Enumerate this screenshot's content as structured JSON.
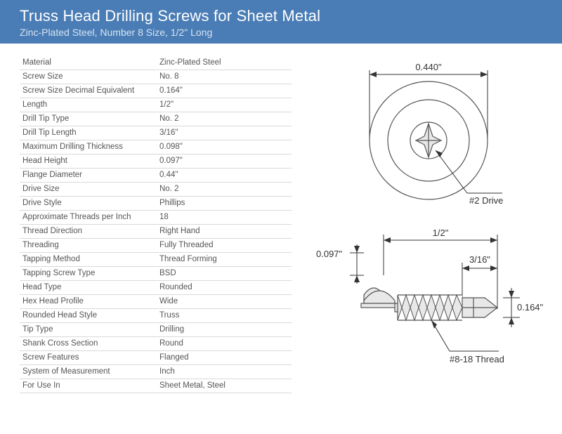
{
  "header": {
    "title": "Truss Head Drilling Screws for Sheet Metal",
    "subtitle": "Zinc-Plated Steel, Number 8 Size, 1/2\" Long"
  },
  "specs": [
    {
      "key": "Material",
      "val": "Zinc-Plated Steel"
    },
    {
      "key": "Screw Size",
      "val": "No. 8"
    },
    {
      "key": "Screw Size Decimal Equivalent",
      "val": "0.164\""
    },
    {
      "key": "Length",
      "val": "1/2\""
    },
    {
      "key": "Drill Tip Type",
      "val": "No. 2"
    },
    {
      "key": "Drill Tip Length",
      "val": "3/16\""
    },
    {
      "key": "Maximum Drilling Thickness",
      "val": "0.098\""
    },
    {
      "key": "Head Height",
      "val": "0.097\""
    },
    {
      "key": "Flange Diameter",
      "val": "0.44\""
    },
    {
      "key": "Drive Size",
      "val": "No. 2"
    },
    {
      "key": "Drive Style",
      "val": "Phillips"
    },
    {
      "key": "Approximate Threads per Inch",
      "val": "18"
    },
    {
      "key": "Thread Direction",
      "val": "Right Hand"
    },
    {
      "key": "Threading",
      "val": "Fully Threaded"
    },
    {
      "key": "Tapping Method",
      "val": "Thread Forming"
    },
    {
      "key": "Tapping Screw Type",
      "val": "BSD"
    },
    {
      "key": "Head Type",
      "val": "Rounded"
    },
    {
      "key": "Hex Head Profile",
      "val": "Wide"
    },
    {
      "key": "Rounded Head Style",
      "val": "Truss"
    },
    {
      "key": "Tip Type",
      "val": "Drilling"
    },
    {
      "key": "Shank Cross Section",
      "val": "Round"
    },
    {
      "key": "Screw Features",
      "val": "Flanged"
    },
    {
      "key": "System of Measurement",
      "val": "Inch"
    },
    {
      "key": "For Use In",
      "val": "Sheet Metal, Steel"
    }
  ],
  "diagram": {
    "top": {
      "flange_dia_label": "0.440\"",
      "drive_label": "#2 Drive"
    },
    "side": {
      "head_height_label": "0.097\"",
      "length_label": "1/2\"",
      "tip_length_label": "3/16\"",
      "dia_label": "0.164\"",
      "thread_label": "#8-18 Thread"
    },
    "colors": {
      "fill": "#e8e8e8",
      "stroke": "#555555",
      "dim": "#333333"
    }
  }
}
